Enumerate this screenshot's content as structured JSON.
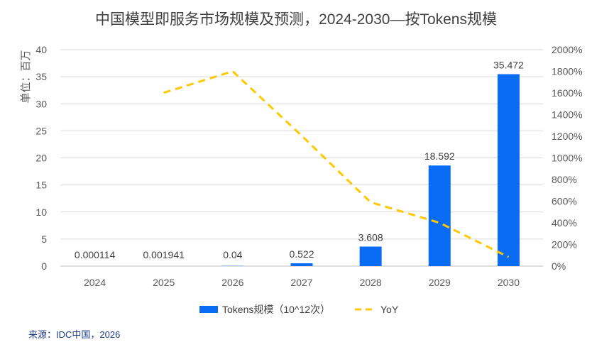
{
  "chart_data": {
    "type": "bar",
    "title": "中国模型即服务市场规模及预测，2024-2030—按Tokens规模",
    "ylabel": "单位：百万",
    "xlabel": "",
    "categories": [
      "2024",
      "2025",
      "2026",
      "2027",
      "2028",
      "2029",
      "2030"
    ],
    "series": [
      {
        "name": "Tokens规模（10^12次）",
        "kind": "bar",
        "axis": "left",
        "color": "#0a6cf5",
        "values": [
          0.000114,
          0.001941,
          0.04,
          0.522,
          3.608,
          18.592,
          35.472
        ],
        "labels": [
          "0.000114",
          "0.001941",
          "0.04",
          "0.522",
          "3.608",
          "18.592",
          "35.472"
        ]
      },
      {
        "name": "YoY",
        "kind": "line",
        "axis": "right",
        "color": "#ffc800",
        "style": "dashed",
        "values": [
          null,
          1602,
          1800,
          1205,
          590,
          400,
          84
        ]
      }
    ],
    "ylim": [
      0,
      40
    ],
    "y_ticks": [
      "0",
      "5",
      "10",
      "15",
      "20",
      "25",
      "30",
      "35",
      "40"
    ],
    "y2lim": [
      0,
      2000
    ],
    "y2_ticks": [
      "0%",
      "200%",
      "400%",
      "600%",
      "800%",
      "1000%",
      "1200%",
      "1400%",
      "1600%",
      "1800%",
      "2000%"
    ],
    "grid": true,
    "legend": "bottom"
  },
  "source": "来源：IDC中国，2026"
}
